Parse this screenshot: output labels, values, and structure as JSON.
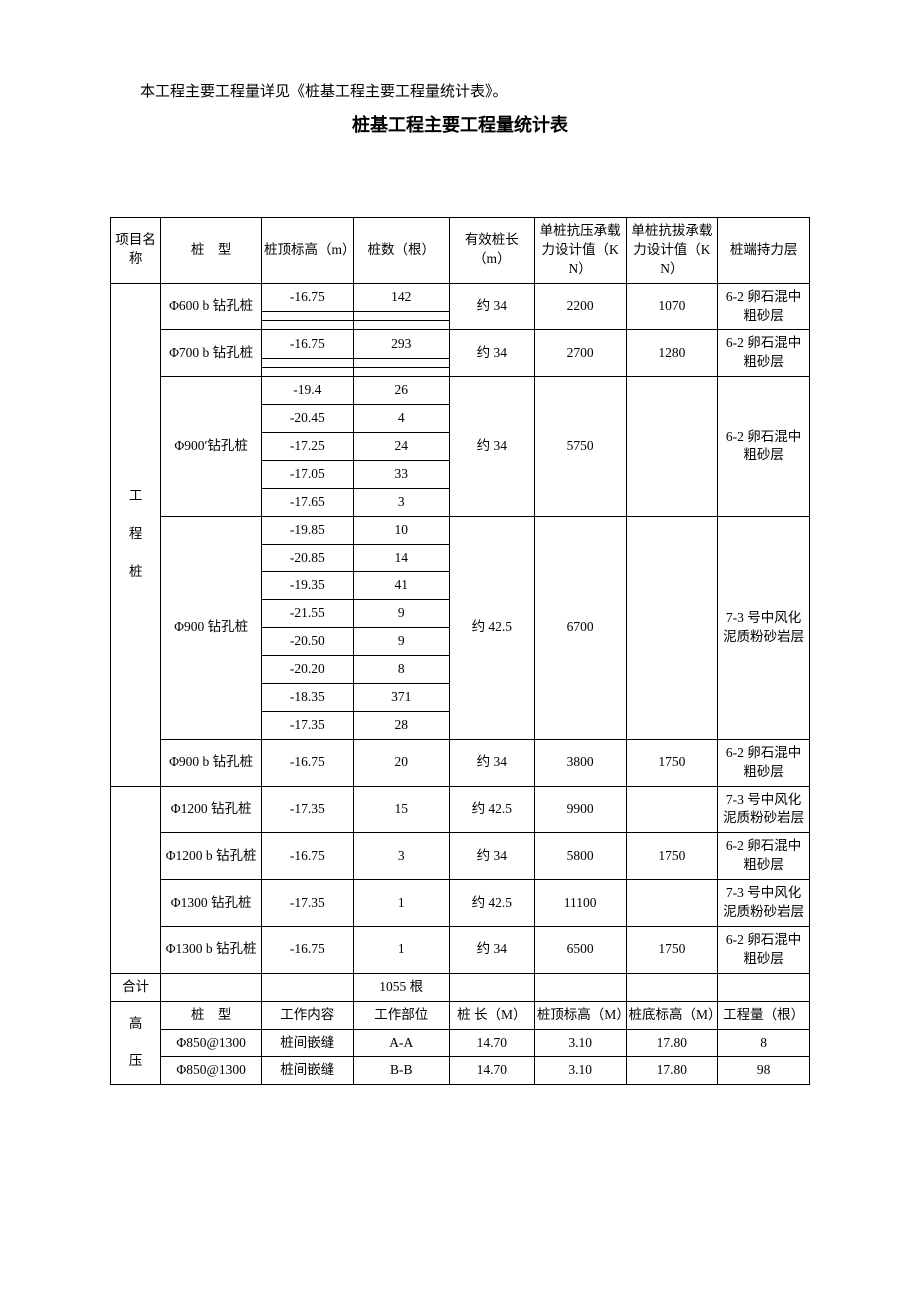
{
  "intro": "本工程主要工程量详见《桩基工程主要工程量统计表》。",
  "title": "桩基工程主要工程量统计表",
  "header": {
    "c0": "项目名称",
    "c1": "桩　型",
    "c2": "桩顶标高（m）",
    "c3": "桩数（根）",
    "c4": "有效桩长（m）",
    "c5": "单桩抗压承载力设计值（KN）",
    "c6": "单桩抗拔承载力设计值（KN）",
    "c7": "桩端持力层"
  },
  "group1_label": "工\n\n程\n\n桩",
  "pile1": {
    "name": "Φ600 b 钻孔桩",
    "r1_elev": "-16.75",
    "r1_cnt": "142",
    "len": "约 34",
    "comp": "2200",
    "tens": "1070",
    "layer": "6-2 卵石混中粗砂层"
  },
  "pile2": {
    "name": "Φ700 b 钻孔桩",
    "r1_elev": "-16.75",
    "r1_cnt": "293",
    "len": "约 34",
    "comp": "2700",
    "tens": "1280",
    "layer": "6-2 卵石混中粗砂层"
  },
  "pile3": {
    "name": "Φ900′钻孔桩",
    "r1_elev": "-19.4",
    "r1_cnt": "26",
    "r2_elev": "-20.45",
    "r2_cnt": "4",
    "r3_elev": "-17.25",
    "r3_cnt": "24",
    "r4_elev": "-17.05",
    "r4_cnt": "33",
    "r5_elev": "-17.65",
    "r5_cnt": "3",
    "len": "约 34",
    "comp": "5750",
    "tens": "",
    "layer": "6-2 卵石混中粗砂层"
  },
  "pile4": {
    "name": "Φ900 钻孔桩",
    "r1_elev": "-19.85",
    "r1_cnt": "10",
    "r2_elev": "-20.85",
    "r2_cnt": "14",
    "r3_elev": "-19.35",
    "r3_cnt": "41",
    "r4_elev": "-21.55",
    "r4_cnt": "9",
    "r5_elev": "-20.50",
    "r5_cnt": "9",
    "r6_elev": "-20.20",
    "r6_cnt": "8",
    "r7_elev": "-18.35",
    "r7_cnt": "371",
    "r8_elev": "-17.35",
    "r8_cnt": "28",
    "len": "约 42.5",
    "comp": "6700",
    "tens": "",
    "layer": "7-3 号中风化泥质粉砂岩层"
  },
  "pile5": {
    "name": "Φ900 b 钻孔桩",
    "elev": "-16.75",
    "cnt": "20",
    "len": "约 34",
    "comp": "3800",
    "tens": "1750",
    "layer": "6-2 卵石混中粗砂层"
  },
  "pile6": {
    "name": "Φ1200 钻孔桩",
    "elev": "-17.35",
    "cnt": "15",
    "len": "约 42.5",
    "comp": "9900",
    "tens": "",
    "layer": "7-3 号中风化泥质粉砂岩层"
  },
  "pile7": {
    "name": "Φ1200 b 钻孔桩",
    "elev": "-16.75",
    "cnt": "3",
    "len": "约 34",
    "comp": "5800",
    "tens": "1750",
    "layer": "6-2 卵石混中粗砂层"
  },
  "pile8": {
    "name": "Φ1300 钻孔桩",
    "elev": "-17.35",
    "cnt": "1",
    "len": "约 42.5",
    "comp": "11100",
    "tens": "",
    "layer": "7-3 号中风化泥质粉砂岩层"
  },
  "pile9": {
    "name": "Φ1300 b 钻孔桩",
    "elev": "-16.75",
    "cnt": "1",
    "len": "约 34",
    "comp": "6500",
    "tens": "1750",
    "layer": "6-2 卵石混中粗砂层"
  },
  "total": {
    "label": "合计",
    "cnt": "1055 根"
  },
  "sec2_label": "高\n\n压",
  "sec2_header": {
    "c1": "桩　型",
    "c2": "工作内容",
    "c3": "工作部位",
    "c4": "桩 长（M）",
    "c5": "桩顶标高（M）",
    "c6": "桩底标高（M）",
    "c7": "工程量（根）"
  },
  "sec2_r1": {
    "c1": "Φ850@1300",
    "c2": "桩间嵌缝",
    "c3": "A-A",
    "c4": "14.70",
    "c5": "3.10",
    "c6": "17.80",
    "c7": "8"
  },
  "sec2_r2": {
    "c1": "Φ850@1300",
    "c2": "桩间嵌缝",
    "c3": "B-B",
    "c4": "14.70",
    "c5": "3.10",
    "c6": "17.80",
    "c7": "98"
  }
}
